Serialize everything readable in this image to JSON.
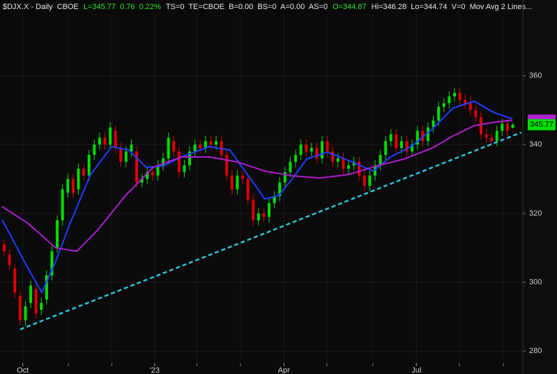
{
  "chart_data": {
    "type": "candlestick",
    "header": [
      {
        "text": "$DJX.X - Daily  CBOE",
        "color": "#e8e8e8"
      },
      {
        "text": "L=345.77  0.76  0.22%",
        "color": "#33e633"
      },
      {
        "text": "TS=0  TE=CBOE  B=0.00  BS=0  A=0.00  AS=0",
        "color": "#e8e8e8"
      },
      {
        "text": "O=344.87",
        "color": "#33e633"
      },
      {
        "text": "Hi=346.28  Lo=344.74  V=0  Mov Avg 2 Lines...",
        "color": "#e8e8e8"
      }
    ],
    "up_color": "#00dd00",
    "down_color": "#e00000",
    "opens": [
      311,
      308,
      304,
      296,
      289,
      294,
      298,
      292,
      295,
      302,
      310,
      318,
      326,
      330,
      327,
      333,
      331,
      337,
      340,
      342,
      340,
      344,
      339,
      335,
      338,
      338,
      329,
      330,
      332,
      331,
      334,
      336,
      341,
      338,
      332,
      334,
      338,
      340,
      339,
      341,
      340,
      341,
      337,
      331,
      327,
      331,
      330,
      324,
      318,
      320,
      319,
      323,
      325,
      329,
      332,
      335,
      337,
      340,
      338,
      339,
      336,
      341,
      338,
      335,
      336,
      333,
      334,
      335,
      331,
      328,
      331,
      334,
      337,
      341,
      343,
      339,
      341,
      338,
      340,
      344,
      341,
      345,
      347,
      351,
      352,
      354,
      355,
      353,
      352,
      350,
      348,
      343,
      342,
      341,
      344,
      346,
      344.87
    ],
    "highs": [
      312.5,
      309.5,
      305.5,
      297.5,
      294.5,
      300.5,
      299.5,
      295.5,
      303.5,
      310.5,
      319.5,
      328.5,
      331.5,
      331.5,
      334.5,
      334.5,
      338.5,
      341.5,
      343.5,
      343.5,
      346.5,
      345.5,
      340.5,
      339.5,
      341.5,
      339.5,
      331.5,
      333.5,
      333.5,
      335.5,
      337.5,
      343.5,
      342.5,
      339.5,
      335.5,
      339.5,
      341.5,
      341.5,
      342.5,
      342.5,
      342.5,
      342.5,
      338.5,
      332.5,
      332.5,
      332.5,
      331.5,
      325.5,
      321.5,
      321.5,
      324.5,
      326.5,
      330.5,
      333.5,
      336.5,
      338.5,
      341.5,
      341.5,
      340.5,
      340.5,
      342.5,
      342.5,
      339.5,
      337.5,
      337.5,
      335.5,
      336.5,
      336.5,
      332.5,
      332.5,
      335.5,
      338.5,
      342.5,
      344.5,
      344.5,
      342.5,
      342.5,
      341.5,
      345.5,
      345.5,
      346.5,
      348.5,
      352.5,
      353.5,
      355.5,
      356.5,
      356.5,
      354.5,
      353.5,
      351.5,
      349.5,
      344.5,
      343.5,
      345.5,
      347.5,
      347.5,
      346.28
    ],
    "lows": [
      307.5,
      303.5,
      295.5,
      287.5,
      287.5,
      292.5,
      289.5,
      290.5,
      293.5,
      300.5,
      308.5,
      316.5,
      324.5,
      324.5,
      325.5,
      329.5,
      329.5,
      335.5,
      338.5,
      338.5,
      338.5,
      337.5,
      333.5,
      333.5,
      336.5,
      327.5,
      327.5,
      328.5,
      329.5,
      329.5,
      332.5,
      334.5,
      336.5,
      330.5,
      330.5,
      332.5,
      336.5,
      337.5,
      337.5,
      338.5,
      338.5,
      335.5,
      329.5,
      325.5,
      325.5,
      328.5,
      322.5,
      316.5,
      316.5,
      317.5,
      317.5,
      321.5,
      323.5,
      327.5,
      330.5,
      333.5,
      335.5,
      336.5,
      336.5,
      334.5,
      334.5,
      336.5,
      333.5,
      333.5,
      331.5,
      331.5,
      332.5,
      329.5,
      326.5,
      326.5,
      329.5,
      332.5,
      335.5,
      339.5,
      337.5,
      337.5,
      336.5,
      336.5,
      338.5,
      339.5,
      339.5,
      343.5,
      345.5,
      349.5,
      350.5,
      352.5,
      351.5,
      350.5,
      348.5,
      346.5,
      341.5,
      340.5,
      339.5,
      339.5,
      342.5,
      342.5,
      344.74
    ],
    "closes": [
      309,
      305,
      297,
      289,
      293,
      299,
      291,
      294,
      302,
      309,
      318,
      327,
      330,
      326,
      333,
      331,
      337,
      340,
      342,
      340,
      345,
      339,
      335,
      338,
      340,
      329,
      330,
      332,
      331,
      334,
      336,
      342,
      338,
      332,
      334,
      338,
      340,
      339,
      341,
      340,
      341,
      337,
      331,
      327,
      331,
      330,
      324,
      318,
      320,
      319,
      323,
      325,
      329,
      332,
      335,
      337,
      340,
      338,
      339,
      336,
      341,
      338,
      335,
      336,
      333,
      334,
      335,
      331,
      328,
      331,
      334,
      337,
      341,
      343,
      339,
      341,
      338,
      340,
      344,
      341,
      345,
      347,
      351,
      352,
      354,
      355,
      353,
      352,
      350,
      348,
      343,
      342,
      341,
      344,
      346,
      344,
      345.77
    ],
    "lines": [
      {
        "color": "#1f3fff",
        "width": 2,
        "x": [
          -0.4,
          4.5,
          7.1,
          9.7,
          12.4,
          16.3,
          20.3,
          23.5,
          26.8,
          30.1,
          33.4,
          38.7,
          42.6,
          45.9,
          49.2,
          51.8,
          54.5,
          57.1,
          61.0,
          65.0,
          69.7,
          72.9,
          76.8,
          80.8,
          84.7,
          88.7,
          92.6,
          95.9
        ],
        "values": [
          318.2,
          304,
          297,
          306,
          317,
          331.3,
          339.4,
          338.4,
          333.4,
          333.8,
          336.4,
          339.4,
          338.4,
          331.3,
          324.2,
          325.2,
          330.3,
          335.8,
          337.8,
          335.4,
          332.3,
          336.4,
          339.4,
          344.5,
          350.6,
          352.6,
          349.2,
          347.5
        ]
      },
      {
        "color": "#b01fd0",
        "width": 2,
        "x": [
          -0.4,
          4.5,
          9.7,
          13.7,
          17.6,
          22.9,
          28.1,
          33.4,
          38.7,
          43.9,
          49.2,
          54.5,
          59.7,
          65.0,
          70.3,
          75.5,
          80.8,
          84.7,
          88.7,
          92.6,
          95.9
        ],
        "values": [
          322,
          317.1,
          310,
          309,
          315.1,
          325.2,
          333.4,
          336.4,
          336.4,
          335,
          332.3,
          330.9,
          330.3,
          331.3,
          333.8,
          335.8,
          339,
          342.5,
          345.5,
          346.5,
          347.1
        ]
      },
      {
        "color": "#26c6da",
        "width": 2.5,
        "dashed": true,
        "x": [
          3,
          97.6
        ],
        "values": [
          286.3,
          343.5
        ]
      }
    ],
    "xlim": [
      -0.8,
      97.9
    ],
    "ylim": [
      277,
      382
    ],
    "yticks": [
      280,
      300,
      320,
      340,
      360
    ],
    "xticks": [
      {
        "value": 3.5,
        "label": "Oct"
      },
      {
        "value": 28.4,
        "label": "'23"
      },
      {
        "value": 52.8,
        "label": "Apr"
      },
      {
        "value": 77.8,
        "label": "Jul"
      }
    ],
    "xminorticks": [
      12.1,
      20.3,
      36.4,
      44.6,
      60.9,
      69.6,
      85.9,
      94.2
    ],
    "grid": true
  }
}
